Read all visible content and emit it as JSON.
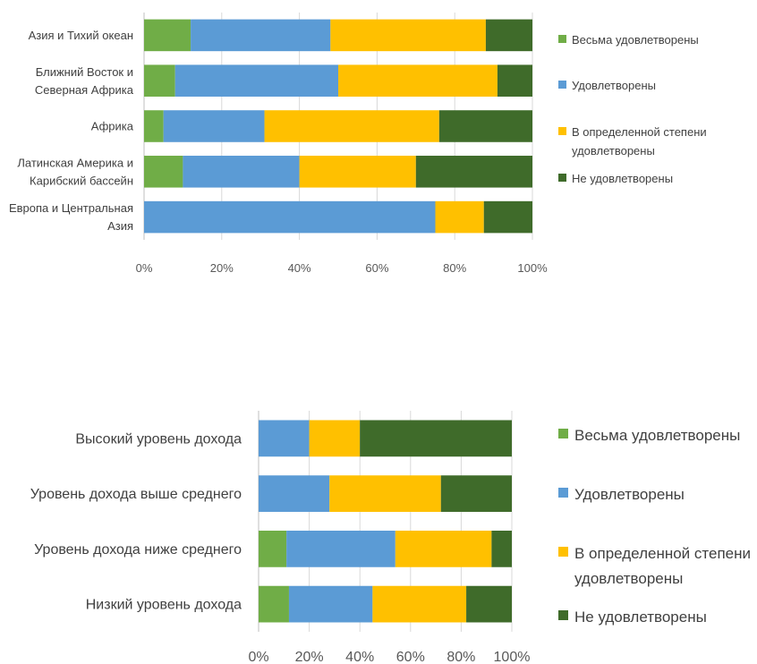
{
  "chart_data": [
    {
      "type": "bar",
      "orientation": "horizontal",
      "stacked": "100%",
      "categories": [
        "Азия и Тихий океан",
        "Ближний Восток и Северная Африка",
        "Африка",
        "Латинская Америка и Карибский бассейн",
        "Европа и Центральная Азия"
      ],
      "category_lines": [
        [
          "Азия и Тихий океан"
        ],
        [
          "Ближний Восток и",
          "Северная Африка"
        ],
        [
          "Африка"
        ],
        [
          "Латинская Америка и",
          "Карибский бассейн"
        ],
        [
          "Европа и Центральная",
          "Азия"
        ]
      ],
      "series": [
        {
          "name": "Весьма удовлетворены",
          "color": "#70ad47",
          "values": [
            12,
            8,
            5,
            10,
            0
          ]
        },
        {
          "name": "Удовлетворены",
          "color": "#5b9bd5",
          "values": [
            36,
            42,
            26,
            30,
            75
          ]
        },
        {
          "name": "В определенной степени удовлетворены",
          "color": "#ffc000",
          "values": [
            40,
            41,
            45,
            30,
            12.5
          ]
        },
        {
          "name": "Не удовлетворены",
          "color": "#3f6b2a",
          "values": [
            12,
            9,
            24,
            30,
            12.5
          ]
        }
      ],
      "legend_lines": [
        [
          "Весьма удовлетворены"
        ],
        [
          "Удовлетворены"
        ],
        [
          "В определенной степени",
          "удовлетворены"
        ],
        [
          "Не удовлетворены"
        ]
      ],
      "xlim": [
        0,
        100
      ],
      "xticks": [
        "0%",
        "20%",
        "40%",
        "60%",
        "80%",
        "100%"
      ],
      "grid": true,
      "legend_position": "right"
    },
    {
      "type": "bar",
      "orientation": "horizontal",
      "stacked": "100%",
      "categories": [
        "Высокий уровень дохода",
        "Уровень дохода выше среднего",
        "Уровень дохода ниже среднего",
        "Низкий уровень дохода"
      ],
      "category_lines": [
        [
          "Высокий уровень дохода"
        ],
        [
          "Уровень дохода выше среднего"
        ],
        [
          "Уровень дохода ниже среднего"
        ],
        [
          "Низкий уровень дохода"
        ]
      ],
      "series": [
        {
          "name": "Весьма удовлетворены",
          "color": "#70ad47",
          "values": [
            0,
            0,
            11,
            12
          ]
        },
        {
          "name": "Удовлетворены",
          "color": "#5b9bd5",
          "values": [
            20,
            28,
            43,
            33
          ]
        },
        {
          "name": "В определенной степени удовлетворены",
          "color": "#ffc000",
          "values": [
            20,
            44,
            38,
            37
          ]
        },
        {
          "name": "Не удовлетворены",
          "color": "#3f6b2a",
          "values": [
            60,
            28,
            8,
            18
          ]
        }
      ],
      "legend_lines": [
        [
          "Весьма удовлетворены"
        ],
        [
          "Удовлетворены"
        ],
        [
          "В определенной степени",
          "удовлетворены"
        ],
        [
          "Не удовлетворены"
        ]
      ],
      "xlim": [
        0,
        100
      ],
      "xticks": [
        "0%",
        "20%",
        "40%",
        "60%",
        "80%",
        "100%"
      ],
      "grid": true,
      "legend_position": "right"
    }
  ]
}
